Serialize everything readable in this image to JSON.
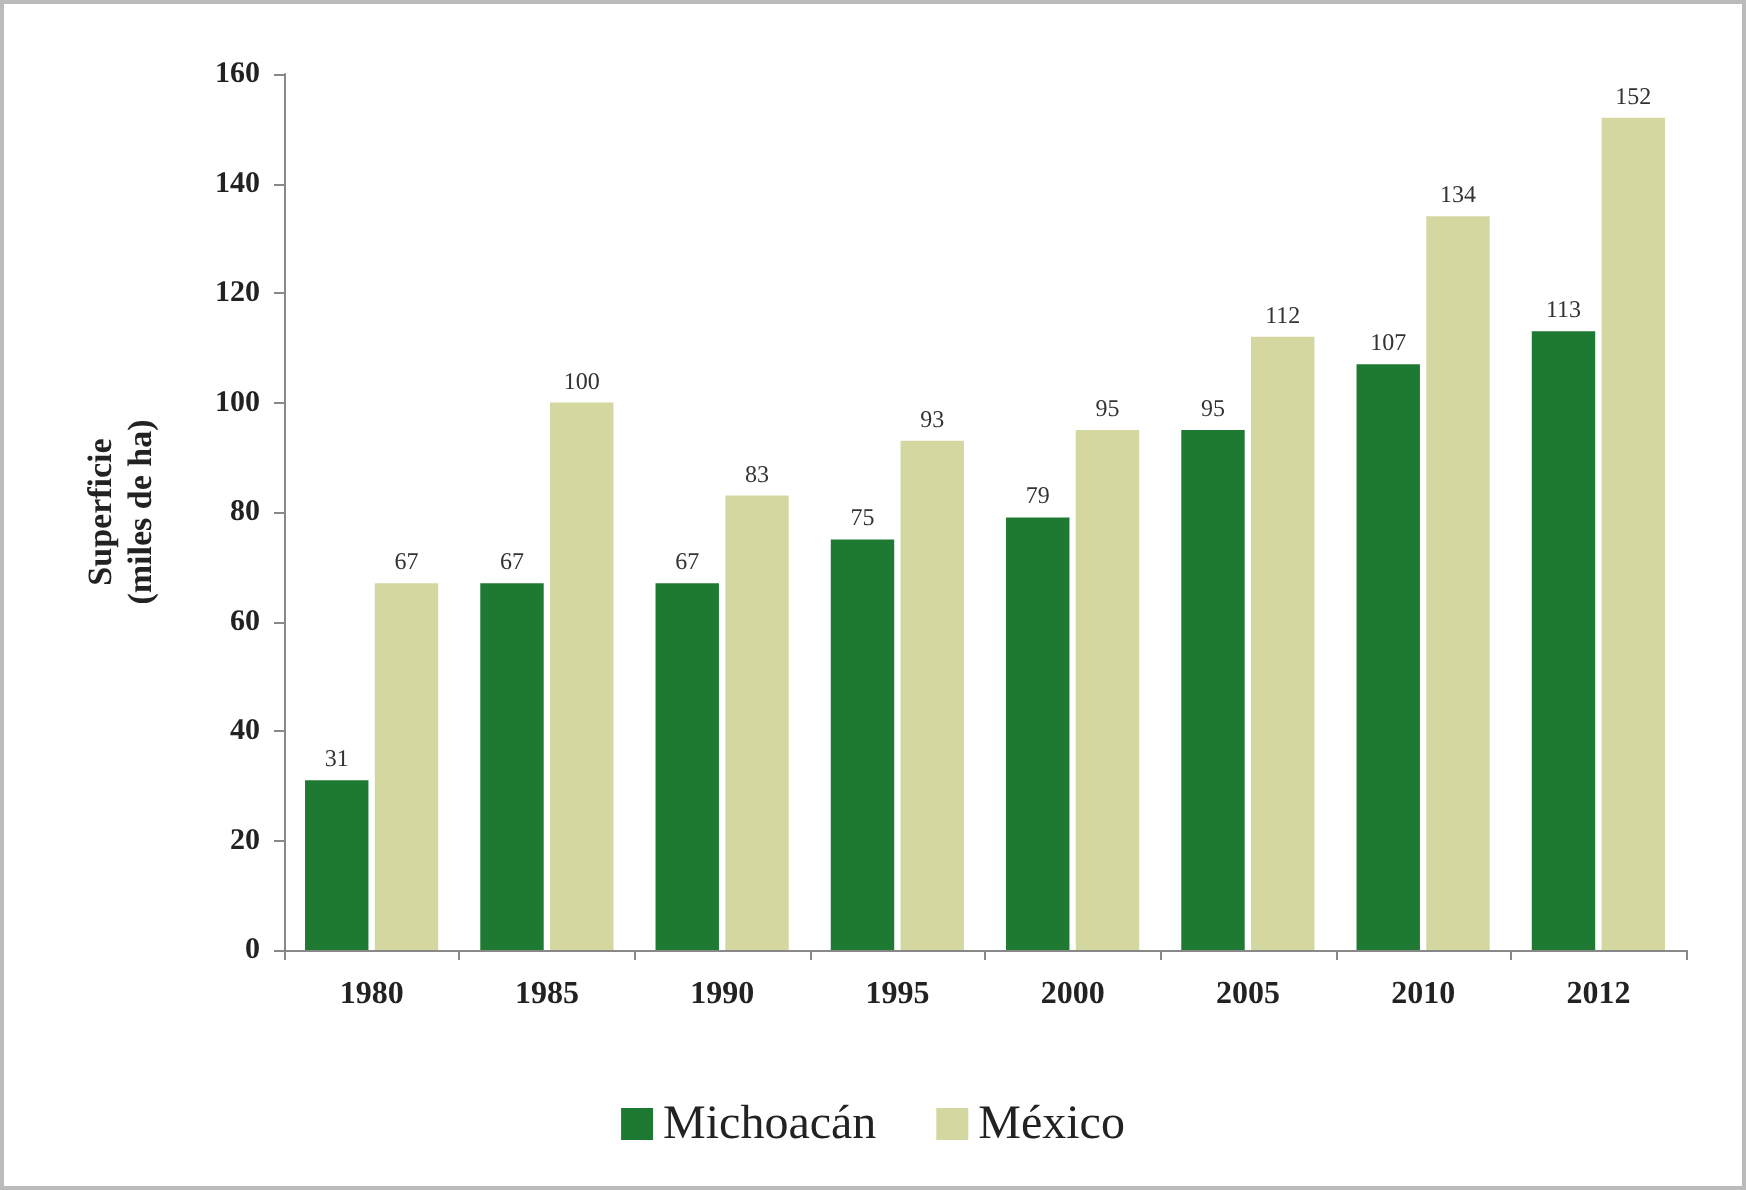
{
  "chart_data": {
    "type": "bar",
    "ylabel": "Superficie\n(miles de ha)",
    "categories": [
      "1980",
      "1985",
      "1990",
      "1995",
      "2000",
      "2005",
      "2010",
      "2012"
    ],
    "series": [
      {
        "name": "Michoacán",
        "color": "#1e7a32",
        "values": [
          31,
          67,
          67,
          75,
          79,
          95,
          107,
          113
        ]
      },
      {
        "name": "México",
        "color": "#d4d7a0",
        "values": [
          67,
          100,
          83,
          93,
          95,
          112,
          134,
          152
        ]
      }
    ],
    "ylim": [
      0,
      160
    ],
    "yticks": [
      0,
      20,
      40,
      60,
      80,
      100,
      120,
      140,
      160
    ],
    "data_labels": true,
    "legend": "bottom",
    "grid": false
  }
}
